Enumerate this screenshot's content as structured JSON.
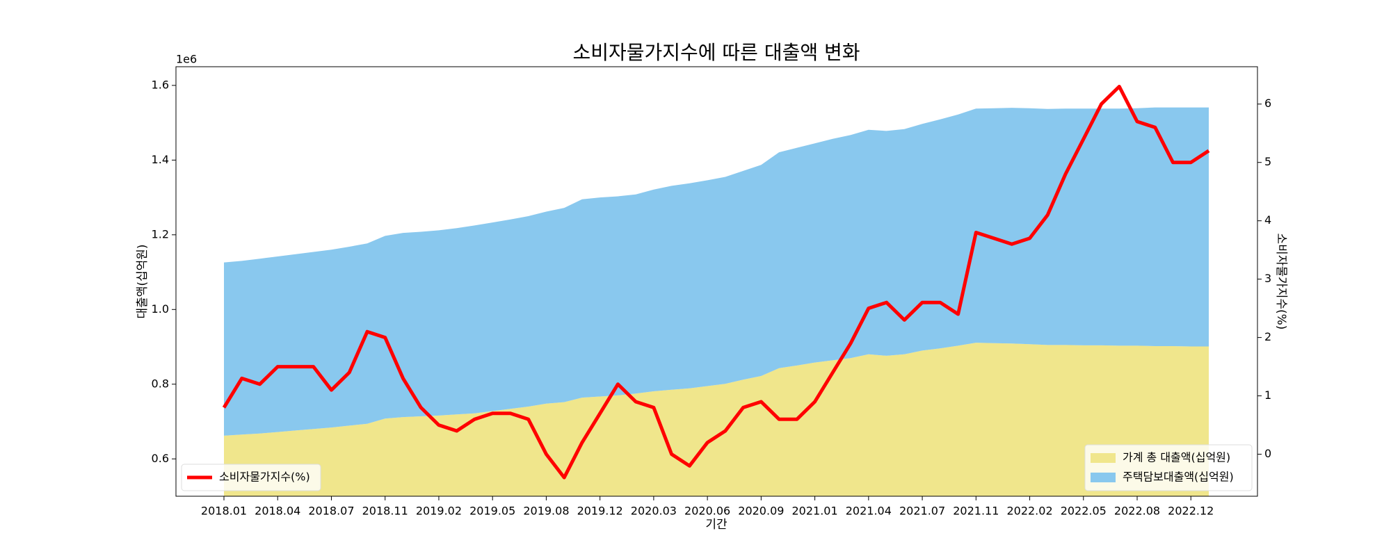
{
  "chart_data": {
    "type": "stacked_area_line",
    "title": "소비자물가지수에 따른 대출액 변화",
    "x_label": "기간",
    "y_label": "대출액(십억원)",
    "y2_label": "소비자물가지수(%)",
    "y_offset_label": "1e6",
    "categories": [
      "2018.01",
      null,
      null,
      "2018.04",
      null,
      null,
      "2018.07",
      null,
      null,
      "2018.11",
      null,
      null,
      "2019.02",
      null,
      null,
      "2019.05",
      null,
      null,
      "2019.08",
      null,
      null,
      "2019.12",
      null,
      null,
      "2020.03",
      null,
      null,
      "2020.06",
      null,
      null,
      "2020.09",
      null,
      null,
      "2021.01",
      null,
      null,
      "2021.04",
      null,
      null,
      "2021.07",
      null,
      null,
      "2021.11",
      null,
      null,
      "2022.02",
      null,
      null,
      "2022.05",
      null,
      null,
      "2022.08",
      null,
      null,
      "2022.12",
      null
    ],
    "series": [
      {
        "name": "가계 총 대출액(십억원)",
        "color": "#f0e68c",
        "kind": "area",
        "values": [
          662000,
          665000,
          668000,
          672000,
          676000,
          680000,
          684000,
          689000,
          694000,
          708000,
          712000,
          714000,
          716000,
          719000,
          722000,
          728000,
          734000,
          740000,
          748000,
          752000,
          764000,
          767000,
          770000,
          775000,
          781000,
          785000,
          789000,
          795000,
          801000,
          812000,
          822000,
          843000,
          850000,
          858000,
          864000,
          870000,
          880000,
          876000,
          880000,
          890000,
          896000,
          903000,
          911000,
          910000,
          909000,
          907000,
          905000,
          905000,
          904000,
          904000,
          903000,
          903000,
          902000,
          902000,
          901000,
          901000
        ]
      },
      {
        "name": "주택담보대출액(십억원)",
        "color": "#89c8ee",
        "kind": "area",
        "values": [
          464000,
          465000,
          468000,
          470000,
          472000,
          474000,
          476000,
          479000,
          483000,
          489000,
          493000,
          494000,
          496000,
          499000,
          503000,
          505000,
          507000,
          510000,
          514000,
          520000,
          531000,
          533000,
          533000,
          533000,
          540000,
          546000,
          549000,
          551000,
          554000,
          559000,
          565000,
          578000,
          583000,
          587000,
          593000,
          597000,
          601000,
          602000,
          603000,
          607000,
          613000,
          619000,
          627000,
          629000,
          631000,
          632000,
          632000,
          633000,
          634000,
          634000,
          635000,
          636000,
          639000,
          639000,
          640000,
          640000
        ]
      },
      {
        "name": "소비자물가지수(%)",
        "color": "#ff0000",
        "kind": "line",
        "axis": "y2",
        "values": [
          0.8,
          1.3,
          1.2,
          1.5,
          1.5,
          1.5,
          1.1,
          1.4,
          2.1,
          2.0,
          1.3,
          0.8,
          0.5,
          0.4,
          0.6,
          0.7,
          0.7,
          0.6,
          0.0,
          -0.4,
          0.2,
          0.7,
          1.2,
          0.9,
          0.8,
          0.0,
          -0.2,
          0.2,
          0.4,
          0.8,
          0.9,
          0.6,
          0.6,
          0.9,
          1.4,
          1.9,
          2.5,
          2.6,
          2.3,
          2.6,
          2.6,
          2.4,
          3.8,
          3.7,
          3.6,
          3.7,
          4.1,
          4.8,
          5.4,
          6.0,
          6.3,
          5.7,
          5.6,
          5.0,
          5.0,
          5.2
        ]
      }
    ],
    "ylim": [
      500000,
      1650000
    ],
    "yticks": [
      {
        "value": 600000,
        "label": "0.6"
      },
      {
        "value": 800000,
        "label": "0.8"
      },
      {
        "value": 1000000,
        "label": "1.0"
      },
      {
        "value": 1200000,
        "label": "1.2"
      },
      {
        "value": 1400000,
        "label": "1.4"
      },
      {
        "value": 1600000,
        "label": "1.6"
      }
    ],
    "y2lim": [
      -0.72,
      6.64
    ],
    "y2ticks": [
      0,
      1,
      2,
      3,
      4,
      5,
      6
    ],
    "legend": {
      "line": "lower left",
      "area": "lower right"
    }
  }
}
